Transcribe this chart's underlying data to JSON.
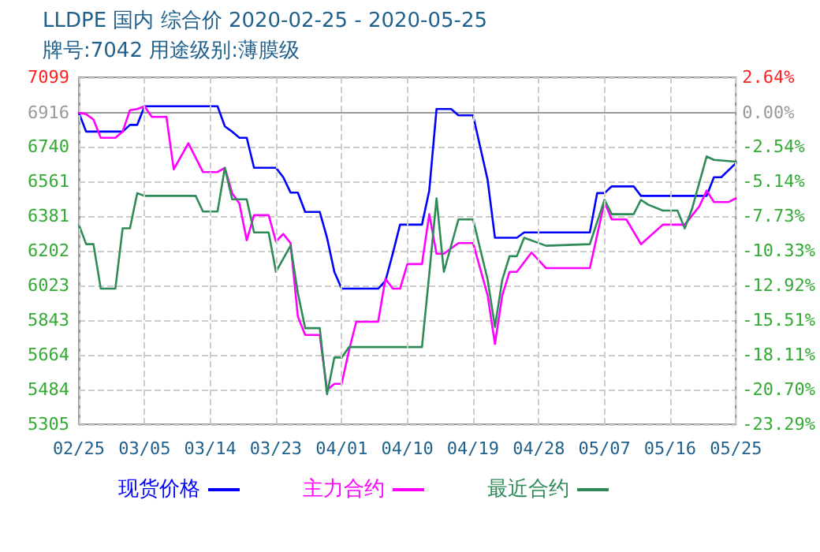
{
  "chart_data": {
    "type": "line",
    "title": "LLDPE 国内 综合价 2020-02-25 - 2020-05-25",
    "subtitle": "牌号:7042 用途级别:薄膜级",
    "xlim": [
      "2020-02-25",
      "2020-05-25"
    ],
    "xticks": [
      {
        "value": "2020-02-25",
        "label": "02/25"
      },
      {
        "value": "2020-03-05",
        "label": "03/05"
      },
      {
        "value": "2020-03-14",
        "label": "03/14"
      },
      {
        "value": "2020-03-23",
        "label": "03/23"
      },
      {
        "value": "2020-04-01",
        "label": "04/01"
      },
      {
        "value": "2020-04-10",
        "label": "04/10"
      },
      {
        "value": "2020-04-19",
        "label": "04/19"
      },
      {
        "value": "2020-04-28",
        "label": "04/28"
      },
      {
        "value": "2020-05-07",
        "label": "05/07"
      },
      {
        "value": "2020-05-16",
        "label": "05/16"
      },
      {
        "value": "2020-05-25",
        "label": "05/25"
      }
    ],
    "ylim": [
      5305,
      7099
    ],
    "yticks": [
      5305,
      5484,
      5664,
      5843,
      6023,
      6202,
      6381,
      6561,
      6740,
      6916,
      7099
    ],
    "y2lim": [
      -23.29,
      2.64
    ],
    "y2ticks": [
      {
        "value": -23.29,
        "label": "-23.29%"
      },
      {
        "value": -20.7,
        "label": "-20.70%"
      },
      {
        "value": -18.11,
        "label": "-18.11%"
      },
      {
        "value": -15.51,
        "label": "-15.51%"
      },
      {
        "value": -12.92,
        "label": "-12.92%"
      },
      {
        "value": -10.33,
        "label": "-10.33%"
      },
      {
        "value": -7.73,
        "label": "-7.73%"
      },
      {
        "value": -5.14,
        "label": "-5.14%"
      },
      {
        "value": -2.54,
        "label": "-2.54%"
      },
      {
        "value": 0,
        "label": "0.00%"
      },
      {
        "value": 2.64,
        "label": "2.64%"
      }
    ],
    "grid": true,
    "legend": "bottom left",
    "marker": "none",
    "line_style": "solid",
    "series": [
      {
        "name": "现货价格",
        "color": "#0000ff",
        "x": [
          "2020-02-25",
          "2020-02-26",
          "2020-03-02",
          "2020-03-03",
          "2020-03-04",
          "2020-03-05",
          "2020-03-15",
          "2020-03-16",
          "2020-03-17",
          "2020-03-18",
          "2020-03-19",
          "2020-03-20",
          "2020-03-23",
          "2020-03-24",
          "2020-03-25",
          "2020-03-26",
          "2020-03-27",
          "2020-03-29",
          "2020-03-30",
          "2020-03-31",
          "2020-04-01",
          "2020-04-06",
          "2020-04-07",
          "2020-04-08",
          "2020-04-09",
          "2020-04-12",
          "2020-04-13",
          "2020-04-14",
          "2020-04-16",
          "2020-04-17",
          "2020-04-19",
          "2020-04-21",
          "2020-04-22",
          "2020-04-25",
          "2020-04-26",
          "2020-05-05",
          "2020-05-06",
          "2020-05-07",
          "2020-05-08",
          "2020-05-11",
          "2020-05-12",
          "2020-05-21",
          "2020-05-22",
          "2020-05-23",
          "2020-05-25"
        ],
        "values": [
          6916,
          6818,
          6818,
          6853,
          6853,
          6949,
          6949,
          6845,
          6818,
          6786,
          6786,
          6631,
          6631,
          6582,
          6503,
          6503,
          6403,
          6403,
          6269,
          6093,
          6006,
          6006,
          6046,
          6187,
          6337,
          6337,
          6513,
          6935,
          6935,
          6902,
          6902,
          6568,
          6269,
          6269,
          6297,
          6297,
          6500,
          6500,
          6535,
          6535,
          6486,
          6486,
          6582,
          6582,
          6655
        ]
      },
      {
        "name": "主力合约",
        "color": "#ff00ff",
        "x": [
          "2020-02-25",
          "2020-02-26",
          "2020-02-27",
          "2020-02-28",
          "2020-03-01",
          "2020-03-02",
          "2020-03-03",
          "2020-03-04",
          "2020-03-05",
          "2020-03-06",
          "2020-03-08",
          "2020-03-09",
          "2020-03-11",
          "2020-03-13",
          "2020-03-15",
          "2020-03-16",
          "2020-03-17",
          "2020-03-18",
          "2020-03-19",
          "2020-03-20",
          "2020-03-22",
          "2020-03-23",
          "2020-03-24",
          "2020-03-25",
          "2020-03-26",
          "2020-03-27",
          "2020-03-29",
          "2020-03-30",
          "2020-03-31",
          "2020-04-01",
          "2020-04-02",
          "2020-04-03",
          "2020-04-06",
          "2020-04-07",
          "2020-04-08",
          "2020-04-09",
          "2020-04-10",
          "2020-04-12",
          "2020-04-13",
          "2020-04-14",
          "2020-04-15",
          "2020-04-17",
          "2020-04-19",
          "2020-04-21",
          "2020-04-22",
          "2020-04-23",
          "2020-04-24",
          "2020-04-25",
          "2020-04-27",
          "2020-04-29",
          "2020-05-05",
          "2020-05-07",
          "2020-05-08",
          "2020-05-10",
          "2020-05-12",
          "2020-05-13",
          "2020-05-15",
          "2020-05-18",
          "2020-05-20",
          "2020-05-21",
          "2020-05-22",
          "2020-05-24",
          "2020-05-25"
        ],
        "values": [
          6916,
          6908,
          6881,
          6786,
          6786,
          6818,
          6929,
          6935,
          6949,
          6894,
          6894,
          6623,
          6758,
          6609,
          6609,
          6631,
          6500,
          6446,
          6256,
          6386,
          6386,
          6250,
          6289,
          6242,
          5862,
          5767,
          5767,
          5482,
          5514,
          5514,
          5685,
          5835,
          5835,
          6057,
          6006,
          6006,
          6133,
          6133,
          6391,
          6187,
          6187,
          6242,
          6242,
          5971,
          5720,
          5971,
          6093,
          6093,
          6193,
          6112,
          6112,
          6454,
          6364,
          6364,
          6236,
          6269,
          6337,
          6337,
          6432,
          6513,
          6454,
          6454,
          6473
        ]
      },
      {
        "name": "最近合约",
        "color": "#2e8b57",
        "x": [
          "2020-02-25",
          "2020-02-26",
          "2020-02-27",
          "2020-02-28",
          "2020-03-01",
          "2020-03-02",
          "2020-03-03",
          "2020-03-04",
          "2020-03-05",
          "2020-03-12",
          "2020-03-13",
          "2020-03-15",
          "2020-03-16",
          "2020-03-17",
          "2020-03-19",
          "2020-03-20",
          "2020-03-22",
          "2020-03-23",
          "2020-03-25",
          "2020-03-26",
          "2020-03-27",
          "2020-03-29",
          "2020-03-30",
          "2020-03-31",
          "2020-04-01",
          "2020-04-02",
          "2020-04-12",
          "2020-04-13",
          "2020-04-14",
          "2020-04-15",
          "2020-04-17",
          "2020-04-19",
          "2020-04-21",
          "2020-04-22",
          "2020-04-23",
          "2020-04-24",
          "2020-04-25",
          "2020-04-26",
          "2020-04-29",
          "2020-05-05",
          "2020-05-07",
          "2020-05-08",
          "2020-05-11",
          "2020-05-12",
          "2020-05-13",
          "2020-05-15",
          "2020-05-17",
          "2020-05-18",
          "2020-05-19",
          "2020-05-21",
          "2020-05-22",
          "2020-05-25"
        ],
        "values": [
          6337,
          6236,
          6236,
          6006,
          6006,
          6318,
          6318,
          6500,
          6486,
          6486,
          6405,
          6405,
          6631,
          6468,
          6468,
          6297,
          6297,
          6093,
          6228,
          5984,
          5802,
          5802,
          5460,
          5650,
          5650,
          5704,
          5704,
          6080,
          6473,
          6093,
          6364,
          6364,
          6052,
          5808,
          6052,
          6174,
          6174,
          6269,
          6228,
          6236,
          6465,
          6391,
          6391,
          6465,
          6440,
          6410,
          6410,
          6318,
          6419,
          6690,
          6672,
          6663
        ]
      }
    ]
  }
}
